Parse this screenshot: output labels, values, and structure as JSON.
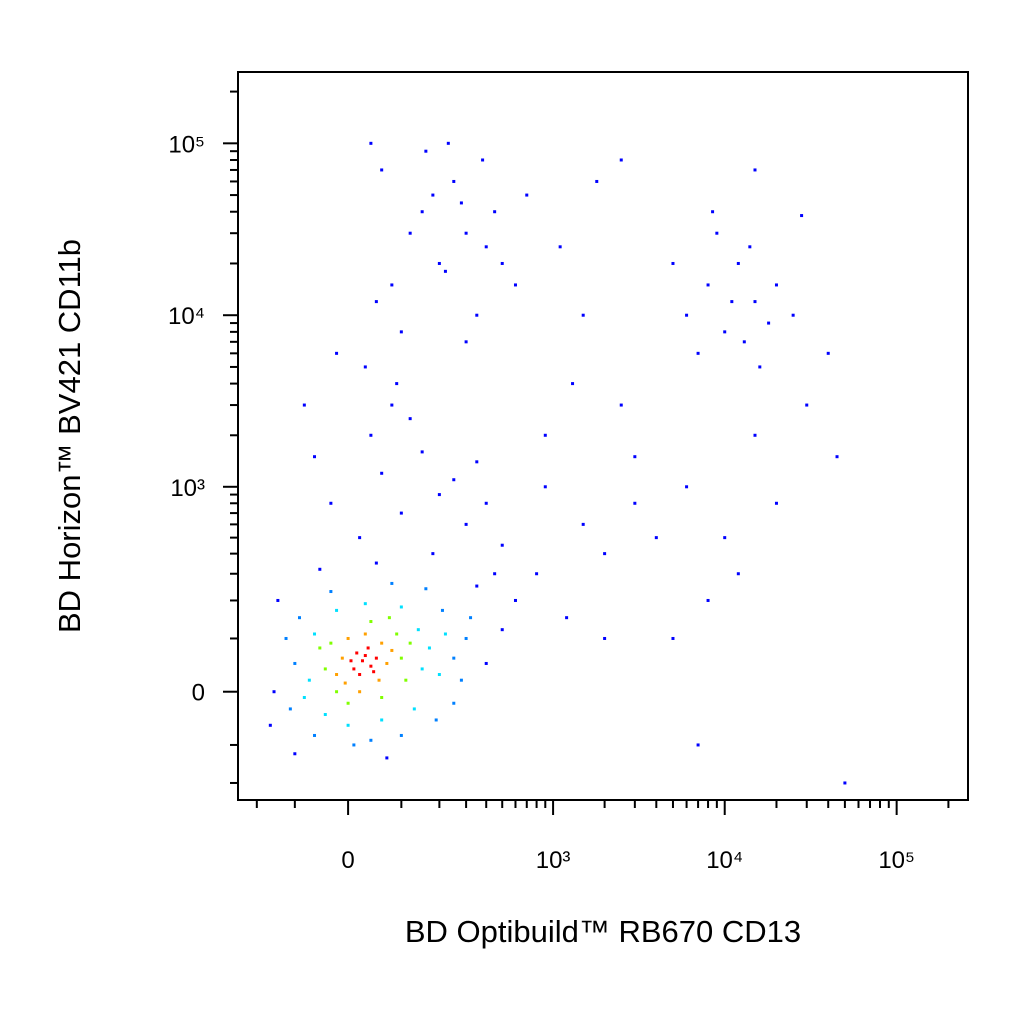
{
  "chart_data": {
    "type": "scatter",
    "x_label": "BD Optibuild™ RB670 CD13",
    "y_label": "BD Horizon™ BV421 CD11b",
    "scale": "biexponential",
    "xlim": [
      -267,
      260000
    ],
    "ylim": [
      -260,
      260000
    ],
    "xticks": [
      0,
      {
        "value": 1000,
        "label": "10³"
      },
      {
        "value": 10000,
        "label": "10⁴"
      },
      {
        "value": 100000,
        "label": "10⁵"
      }
    ],
    "yticks": [
      0,
      {
        "value": 1000,
        "label": "10³"
      },
      {
        "value": 10000,
        "label": "10⁴"
      },
      {
        "value": 100000,
        "label": "10⁵"
      }
    ],
    "xminorticks": [
      -200,
      -100,
      100,
      200,
      300,
      400,
      500,
      600,
      700,
      800,
      900,
      2000,
      3000,
      4000,
      5000,
      6000,
      7000,
      8000,
      9000,
      20000,
      30000,
      40000,
      50000,
      60000,
      70000,
      80000,
      90000,
      200000
    ],
    "yminorticks": [
      -200,
      -100,
      100,
      200,
      300,
      400,
      500,
      600,
      700,
      800,
      900,
      2000,
      3000,
      4000,
      5000,
      6000,
      7000,
      8000,
      9000,
      20000,
      30000,
      40000,
      50000,
      60000,
      70000,
      80000,
      90000,
      200000
    ],
    "series": [
      {
        "color": "#0000ff",
        "x": [
          -150,
          400,
          350,
          -140,
          50,
          -160,
          500,
          450,
          -100,
          70,
          600,
          -50,
          20,
          100,
          200,
          60,
          150,
          -30,
          300,
          250,
          40,
          120,
          350,
          80,
          -60,
          180,
          400,
          500,
          30,
          100,
          200,
          300,
          150,
          250,
          80,
          400,
          50,
          180,
          350,
          120,
          220,
          280,
          60,
          450,
          500,
          160,
          -20,
          90,
          300,
          600,
          700,
          230,
          40,
          -80,
          380,
          800,
          1200,
          1500,
          2000,
          3000,
          900,
          2500,
          1500,
          1100,
          3000,
          4000,
          2000,
          1800,
          2500,
          900,
          1300,
          6000,
          8000,
          10000,
          12000,
          15000,
          9000,
          7000,
          11000,
          14000,
          18000,
          20000,
          5000,
          16000,
          8500,
          13000,
          25000,
          6000,
          10000,
          15000,
          20000,
          8000,
          30000,
          45000,
          12000,
          7000,
          50000,
          40000,
          5000,
          15000,
          28000
        ],
        "y": [
          0,
          50,
          250,
          200,
          350,
          -60,
          120,
          300,
          -120,
          -130,
          200,
          320,
          500,
          700,
          900,
          1200,
          1600,
          800,
          600,
          1100,
          2000,
          2500,
          1400,
          3000,
          1500,
          400,
          800,
          450,
          5000,
          8000,
          20000,
          30000,
          40000,
          60000,
          15000,
          25000,
          12000,
          50000,
          10000,
          30000,
          18000,
          45000,
          70000,
          40000,
          20000,
          90000,
          6000,
          4000,
          7000,
          15000,
          50000,
          100000,
          100000,
          3000,
          80000,
          300,
          150,
          600,
          400,
          800,
          2000,
          3000,
          10000,
          25000,
          1500,
          500,
          100,
          60000,
          80000,
          1000,
          4000,
          10000,
          15000,
          8000,
          20000,
          12000,
          30000,
          6000,
          12000,
          25000,
          9000,
          15000,
          20000,
          5000,
          40000,
          7000,
          10000,
          1000,
          500,
          2000,
          800,
          200,
          3000,
          1500,
          300,
          -100,
          -200,
          6000,
          100,
          70000,
          38000
        ]
      },
      {
        "color": "#0080ff",
        "x": [
          -100,
          250,
          210,
          -90,
          80,
          -110,
          280,
          160,
          -60,
          40,
          300,
          -30,
          190,
          10,
          320,
          -120,
          100,
          250
        ],
        "y": [
          50,
          60,
          170,
          150,
          260,
          -30,
          20,
          240,
          -80,
          -90,
          100,
          230,
          -50,
          -100,
          150,
          100,
          -80,
          -20
        ]
      },
      {
        "color": "#00e0ff",
        "x": [
          -70,
          150,
          140,
          -60,
          30,
          -80,
          170,
          100,
          -40,
          60,
          200,
          -20,
          130,
          0,
          220
        ],
        "y": [
          20,
          40,
          120,
          110,
          190,
          -10,
          80,
          180,
          -40,
          -50,
          30,
          170,
          -30,
          -60,
          110
        ]
      },
      {
        "color": "#80ff00",
        "x": [
          -40,
          100,
          90,
          -30,
          40,
          110,
          -20,
          60,
          0,
          120,
          -50,
          75
        ],
        "y": [
          40,
          60,
          110,
          90,
          140,
          20,
          0,
          -10,
          -20,
          90,
          80,
          150
        ]
      },
      {
        "color": "#ffa000",
        "x": [
          -20,
          70,
          60,
          0,
          -10,
          80,
          30,
          55,
          -5,
          20
        ],
        "y": [
          30,
          50,
          90,
          100,
          60,
          75,
          110,
          20,
          15,
          0
        ]
      },
      {
        "color": "#ff0000",
        "x": [
          10,
          25,
          40,
          15,
          35,
          50,
          20,
          5,
          45,
          30
        ],
        "y": [
          40,
          55,
          45,
          70,
          80,
          60,
          30,
          55,
          35,
          65
        ]
      }
    ]
  }
}
